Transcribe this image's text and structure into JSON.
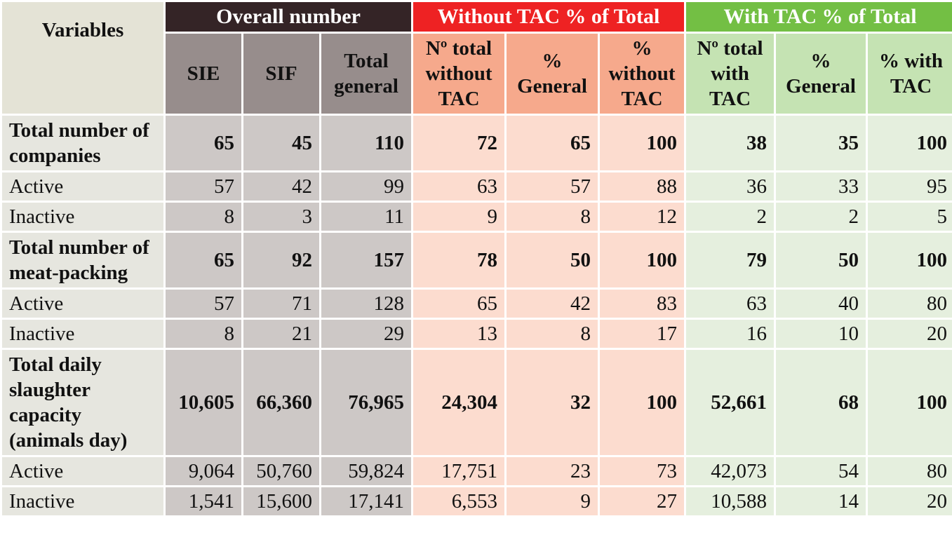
{
  "header": {
    "variables": "Variables",
    "groups": {
      "overall": "Overall number",
      "without": "Without TAC % of Total",
      "with": "With TAC % of Total"
    },
    "cols": {
      "sie": "SIE",
      "sif": "SIF",
      "total_general": "Total general",
      "no_total_without": "Nº total without TAC",
      "pct_general_without": "% General",
      "pct_without": "% without TAC",
      "no_total_with": "Nº total with TAC",
      "pct_general_with": "% General",
      "pct_with": "% with TAC"
    }
  },
  "rows": [
    {
      "label": "Total number of companies",
      "vals": [
        "65",
        "45",
        "110",
        "72",
        "65",
        "100",
        "38",
        "35",
        "100"
      ]
    },
    {
      "label": "Active",
      "vals": [
        "57",
        "42",
        "99",
        "63",
        "57",
        "88",
        "36",
        "33",
        "95"
      ]
    },
    {
      "label": "Inactive",
      "vals": [
        "8",
        "3",
        "11",
        "9",
        "8",
        "12",
        "2",
        "2",
        "5"
      ]
    },
    {
      "label": "Total number of meat-packing",
      "vals": [
        "65",
        "92",
        "157",
        "78",
        "50",
        "100",
        "79",
        "50",
        "100"
      ]
    },
    {
      "label": "Active",
      "vals": [
        "57",
        "71",
        "128",
        "65",
        "42",
        "83",
        "63",
        "40",
        "80"
      ]
    },
    {
      "label": "Inactive",
      "vals": [
        "8",
        "21",
        "29",
        "13",
        "8",
        "17",
        "16",
        "10",
        "20"
      ]
    },
    {
      "label": "Total daily slaughter capacity (animals day)",
      "vals": [
        "10,605",
        "66,360",
        "76,965",
        "24,304",
        "32",
        "100",
        "52,661",
        "68",
        "100"
      ]
    },
    {
      "label": "Active",
      "vals": [
        "9,064",
        "50,760",
        "59,824",
        "17,751",
        "23",
        "73",
        "42,073",
        "54",
        "80"
      ]
    },
    {
      "label": "Inactive",
      "vals": [
        "1,541",
        "15,600",
        "17,141",
        "6,553",
        "9",
        "27",
        "10,588",
        "14",
        "20"
      ]
    }
  ],
  "colors": {
    "overall_header": "#342426",
    "without_header": "#ee2223",
    "with_header": "#73bf44"
  }
}
